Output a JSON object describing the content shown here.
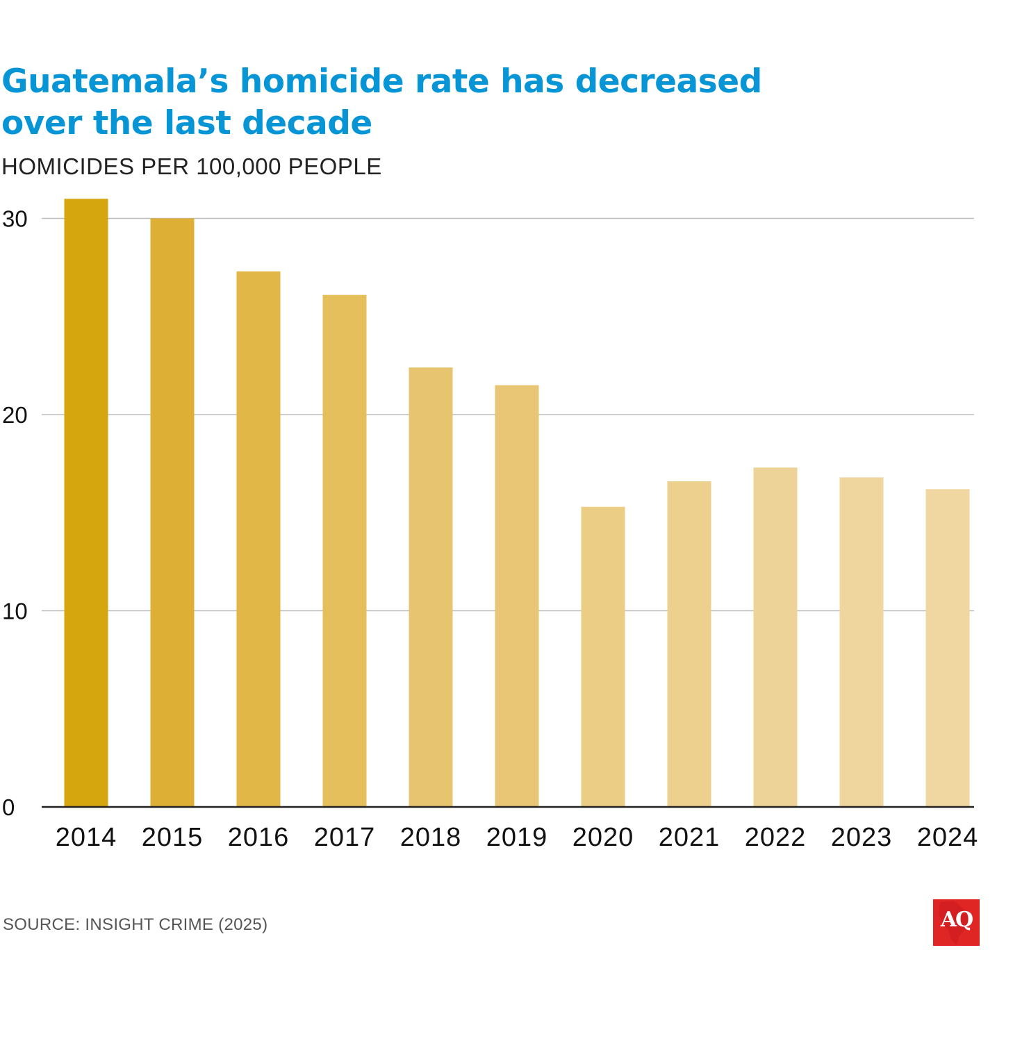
{
  "header": {
    "title": "Guatemala’s homicide rate has decreased over the last decade",
    "subtitle": "HOMICIDES PER 100,000 PEOPLE"
  },
  "footer": {
    "source": "SOURCE: INSIGHT CRIME (2025)",
    "logo_text": "AQ"
  },
  "colors": {
    "title": "#0795d6",
    "logo": "#e02525",
    "gridline": "#bdbdbd",
    "axis": "#222222",
    "bars": [
      "#d6a60f",
      "#ddb035",
      "#e1b748",
      "#e4bf5c",
      "#e7c46f",
      "#e8c675",
      "#ebcd86",
      "#edd08e",
      "#eed398",
      "#efd59e",
      "#f0d7a2"
    ]
  },
  "chart_data": {
    "type": "bar",
    "title": "Guatemala’s homicide rate has decreased over the last decade",
    "subtitle": "HOMICIDES PER 100,000 PEOPLE",
    "xlabel": "",
    "ylabel": "",
    "categories": [
      "2014",
      "2015",
      "2016",
      "2017",
      "2018",
      "2019",
      "2020",
      "2021",
      "2022",
      "2023",
      "2024"
    ],
    "values": [
      31.0,
      30.0,
      27.3,
      26.1,
      22.4,
      21.5,
      15.3,
      16.6,
      17.3,
      16.8,
      16.2
    ],
    "ylim": [
      0,
      30
    ],
    "yticks": [
      0,
      10,
      20,
      30
    ],
    "grid": true,
    "legend": "none"
  }
}
